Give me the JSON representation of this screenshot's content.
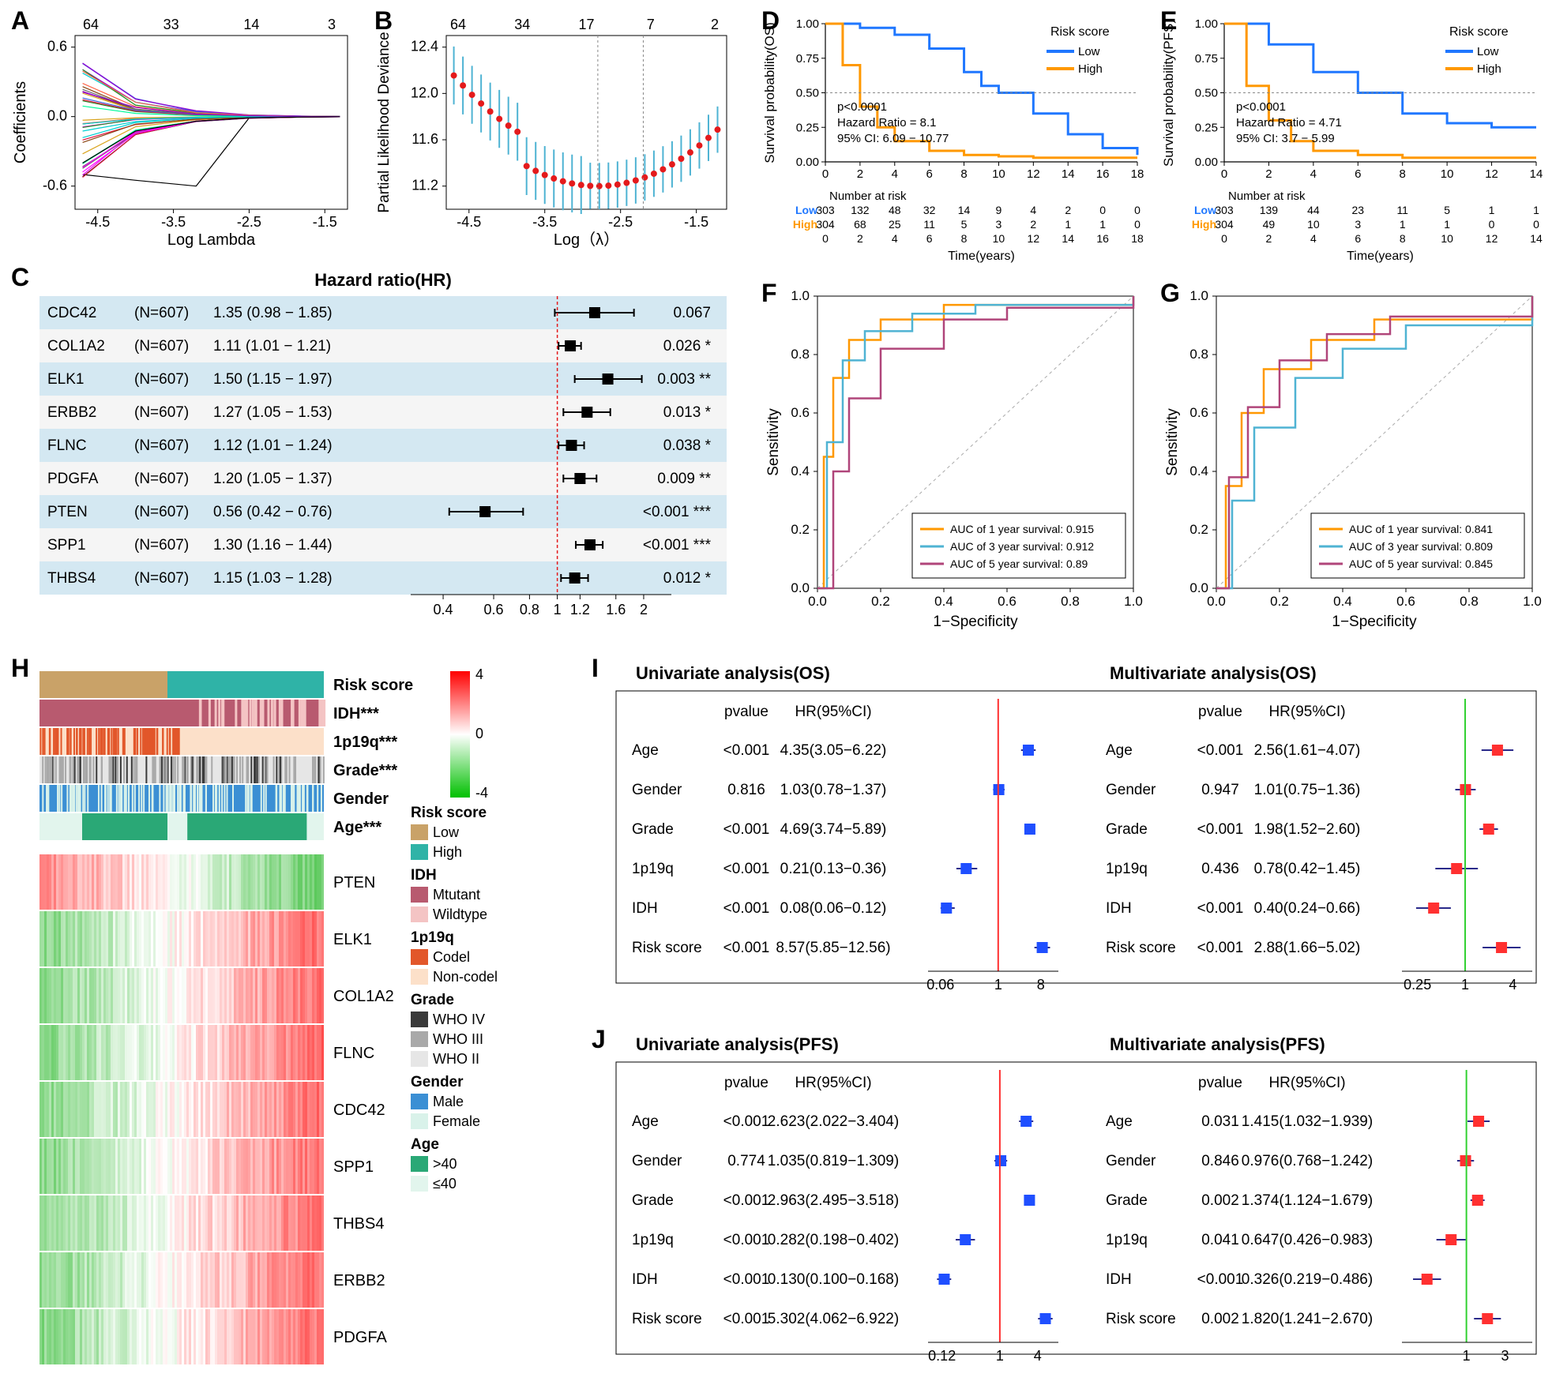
{
  "panelA": {
    "label": "A",
    "xlabel": "Log Lambda",
    "ylabel": "Coefficients",
    "top_ticks": [
      "64",
      "33",
      "14",
      "3"
    ],
    "x_ticks": [
      "-4.5",
      "-3.5",
      "-2.5",
      "-1.5"
    ],
    "y_ticks": [
      "-0.6",
      "0.0",
      "0.6"
    ],
    "xlim": [
      -4.8,
      -1.2
    ],
    "ylim": [
      -0.8,
      0.7
    ],
    "line_colors": [
      "#00CED1",
      "#FF00FF",
      "#9400D3",
      "#000000",
      "#8B4513",
      "#228B22",
      "#FF6347",
      "#4169E1",
      "#DAA520",
      "#696969",
      "#00FA9A",
      "#DC143C"
    ]
  },
  "panelB": {
    "label": "B",
    "xlabel": "Log（λ）",
    "ylabel": "Partial Likelihood Deviance",
    "top_ticks": [
      "64",
      "34",
      "17",
      "7",
      "2"
    ],
    "x_ticks": [
      "-4.5",
      "-3.5",
      "-2.5",
      "-1.5"
    ],
    "y_ticks": [
      "11.2",
      "11.6",
      "12.0",
      "12.4"
    ],
    "xlim": [
      -4.8,
      -1.1
    ],
    "ylim": [
      11.0,
      12.5
    ],
    "point_color": "#e41a1c",
    "error_color": "#4eb3d3",
    "vline_color": "#888888"
  },
  "panelC": {
    "label": "C",
    "title": "Hazard ratio(HR)",
    "header_bg": "#ffffff",
    "row_alt_bg": "#d4e8f2",
    "row_bg": "#f5f5f5",
    "ref_line_color": "#e41a1c",
    "marker_color": "#000000",
    "x_ticks": [
      "0.4",
      "0.6",
      "0.8",
      "1",
      "1.2",
      "1.6",
      "2"
    ],
    "rows": [
      {
        "gene": "CDC42",
        "n": "(N=607)",
        "hr": "1.35 (0.98 − 1.85)",
        "mid": 1.35,
        "lo": 0.98,
        "hi": 1.85,
        "p": "0.067",
        "sig": ""
      },
      {
        "gene": "COL1A2",
        "n": "(N=607)",
        "hr": "1.11 (1.01 − 1.21)",
        "mid": 1.11,
        "lo": 1.01,
        "hi": 1.21,
        "p": "0.026",
        "sig": "*"
      },
      {
        "gene": "ELK1",
        "n": "(N=607)",
        "hr": "1.50 (1.15 − 1.97)",
        "mid": 1.5,
        "lo": 1.15,
        "hi": 1.97,
        "p": "0.003",
        "sig": "**"
      },
      {
        "gene": "ERBB2",
        "n": "(N=607)",
        "hr": "1.27 (1.05 − 1.53)",
        "mid": 1.27,
        "lo": 1.05,
        "hi": 1.53,
        "p": "0.013",
        "sig": "*"
      },
      {
        "gene": "FLNC",
        "n": "(N=607)",
        "hr": "1.12 (1.01 − 1.24)",
        "mid": 1.12,
        "lo": 1.01,
        "hi": 1.24,
        "p": "0.038",
        "sig": "*"
      },
      {
        "gene": "PDGFA",
        "n": "(N=607)",
        "hr": "1.20 (1.05 − 1.37)",
        "mid": 1.2,
        "lo": 1.05,
        "hi": 1.37,
        "p": "0.009",
        "sig": "**"
      },
      {
        "gene": "PTEN",
        "n": "(N=607)",
        "hr": "0.56 (0.42 − 0.76)",
        "mid": 0.56,
        "lo": 0.42,
        "hi": 0.76,
        "p": "<0.001",
        "sig": "***"
      },
      {
        "gene": "SPP1",
        "n": "(N=607)",
        "hr": "1.30 (1.16 − 1.44)",
        "mid": 1.3,
        "lo": 1.16,
        "hi": 1.44,
        "p": "<0.001",
        "sig": "***"
      },
      {
        "gene": "THBS4",
        "n": "(N=607)",
        "hr": "1.15 (1.03 − 1.28)",
        "mid": 1.15,
        "lo": 1.03,
        "hi": 1.28,
        "p": "0.012",
        "sig": "*"
      }
    ]
  },
  "panelD": {
    "label": "D",
    "ylabel": "Survival probability(OS)",
    "xlabel": "Time(years)",
    "legend_title": "Risk score",
    "legend": [
      {
        "label": "Low",
        "color": "#1f77ff"
      },
      {
        "label": "High",
        "color": "#ff9800"
      }
    ],
    "stats": [
      "p<0.0001",
      "Hazard Ratio = 8.1",
      "95% CI: 6.09 − 10.77"
    ],
    "risk_title": "Number at risk",
    "x_ticks": [
      0,
      2,
      4,
      6,
      8,
      10,
      12,
      14,
      16,
      18
    ],
    "y_ticks": [
      "0.00",
      "0.25",
      "0.50",
      "0.75",
      "1.00"
    ],
    "risk_low": [
      "303",
      "132",
      "48",
      "32",
      "14",
      "9",
      "4",
      "2",
      "0",
      "0"
    ],
    "risk_high": [
      "304",
      "68",
      "25",
      "11",
      "5",
      "3",
      "2",
      "1",
      "1",
      "0"
    ],
    "low_curve": [
      [
        0,
        1.0
      ],
      [
        2,
        0.97
      ],
      [
        4,
        0.92
      ],
      [
        6,
        0.82
      ],
      [
        8,
        0.65
      ],
      [
        9,
        0.55
      ],
      [
        10,
        0.5
      ],
      [
        12,
        0.35
      ],
      [
        14,
        0.2
      ],
      [
        16,
        0.1
      ],
      [
        18,
        0.05
      ]
    ],
    "high_curve": [
      [
        0,
        1.0
      ],
      [
        1,
        0.7
      ],
      [
        2,
        0.4
      ],
      [
        3,
        0.25
      ],
      [
        4,
        0.15
      ],
      [
        6,
        0.08
      ],
      [
        8,
        0.05
      ],
      [
        10,
        0.04
      ],
      [
        12,
        0.03
      ],
      [
        18,
        0.03
      ]
    ]
  },
  "panelE": {
    "label": "E",
    "ylabel": "Survival probability(PFS)",
    "xlabel": "Time(years)",
    "legend_title": "Risk score",
    "legend": [
      {
        "label": "Low",
        "color": "#1f77ff"
      },
      {
        "label": "High",
        "color": "#ff9800"
      }
    ],
    "stats": [
      "p<0.0001",
      "Hazard Ratio = 4.71",
      "95% CI: 3.7 − 5.99"
    ],
    "risk_title": "Number at risk",
    "x_ticks": [
      0,
      2,
      4,
      6,
      8,
      10,
      12,
      14
    ],
    "y_ticks": [
      "0.00",
      "0.25",
      "0.50",
      "0.75",
      "1.00"
    ],
    "risk_low": [
      "303",
      "139",
      "44",
      "23",
      "11",
      "5",
      "1",
      "1"
    ],
    "risk_high": [
      "304",
      "49",
      "10",
      "3",
      "1",
      "1",
      "0",
      "0"
    ],
    "low_curve": [
      [
        0,
        1.0
      ],
      [
        2,
        0.85
      ],
      [
        4,
        0.65
      ],
      [
        6,
        0.5
      ],
      [
        8,
        0.35
      ],
      [
        10,
        0.28
      ],
      [
        12,
        0.25
      ],
      [
        14,
        0.25
      ]
    ],
    "high_curve": [
      [
        0,
        1.0
      ],
      [
        1,
        0.55
      ],
      [
        2,
        0.3
      ],
      [
        3,
        0.15
      ],
      [
        4,
        0.08
      ],
      [
        6,
        0.05
      ],
      [
        8,
        0.03
      ],
      [
        14,
        0.03
      ]
    ]
  },
  "panelF": {
    "label": "F",
    "xlabel": "1−Specificity",
    "ylabel": "Sensitivity",
    "x_ticks": [
      "0.0",
      "0.2",
      "0.4",
      "0.6",
      "0.8",
      "1.0"
    ],
    "y_ticks": [
      "0.0",
      "0.2",
      "0.4",
      "0.6",
      "0.8",
      "1.0"
    ],
    "legend": [
      {
        "label": "AUC of 1 year survival:  0.915",
        "color": "#ff9800"
      },
      {
        "label": "AUC of 3 year survival:  0.912",
        "color": "#4fb3d3"
      },
      {
        "label": "AUC of 5 year survival:  0.89",
        "color": "#b0457a"
      }
    ],
    "curves": {
      "y1": [
        [
          0,
          0
        ],
        [
          0.02,
          0.45
        ],
        [
          0.05,
          0.72
        ],
        [
          0.1,
          0.85
        ],
        [
          0.2,
          0.92
        ],
        [
          0.4,
          0.97
        ],
        [
          1,
          1
        ]
      ],
      "y3": [
        [
          0,
          0
        ],
        [
          0.03,
          0.5
        ],
        [
          0.08,
          0.78
        ],
        [
          0.15,
          0.88
        ],
        [
          0.3,
          0.94
        ],
        [
          0.5,
          0.97
        ],
        [
          1,
          1
        ]
      ],
      "y5": [
        [
          0,
          0
        ],
        [
          0.05,
          0.4
        ],
        [
          0.1,
          0.65
        ],
        [
          0.2,
          0.82
        ],
        [
          0.4,
          0.92
        ],
        [
          0.6,
          0.96
        ],
        [
          1,
          1
        ]
      ]
    }
  },
  "panelG": {
    "label": "G",
    "xlabel": "1−Specificity",
    "ylabel": "Sensitivity",
    "x_ticks": [
      "0.0",
      "0.2",
      "0.4",
      "0.6",
      "0.8",
      "1.0"
    ],
    "y_ticks": [
      "0.0",
      "0.2",
      "0.4",
      "0.6",
      "0.8",
      "1.0"
    ],
    "legend": [
      {
        "label": "AUC of 1 year survival:  0.841",
        "color": "#ff9800"
      },
      {
        "label": "AUC of 3 year survival:  0.809",
        "color": "#4fb3d3"
      },
      {
        "label": "AUC of 5 year survival:  0.845",
        "color": "#b0457a"
      }
    ],
    "curves": {
      "y1": [
        [
          0,
          0
        ],
        [
          0.03,
          0.35
        ],
        [
          0.08,
          0.6
        ],
        [
          0.15,
          0.75
        ],
        [
          0.3,
          0.85
        ],
        [
          0.5,
          0.92
        ],
        [
          1,
          1
        ]
      ],
      "y3": [
        [
          0,
          0
        ],
        [
          0.05,
          0.3
        ],
        [
          0.12,
          0.55
        ],
        [
          0.25,
          0.72
        ],
        [
          0.4,
          0.82
        ],
        [
          0.6,
          0.9
        ],
        [
          1,
          1
        ]
      ],
      "y5": [
        [
          0,
          0
        ],
        [
          0.04,
          0.38
        ],
        [
          0.1,
          0.62
        ],
        [
          0.2,
          0.78
        ],
        [
          0.35,
          0.87
        ],
        [
          0.55,
          0.93
        ],
        [
          1,
          1
        ]
      ]
    }
  },
  "panelH": {
    "label": "H",
    "tracks": [
      "Risk score",
      "IDH***",
      "1p19q***",
      "Grade***",
      "Gender",
      "Age***"
    ],
    "genes": [
      "PTEN",
      "ELK1",
      "COL1A2",
      "FLNC",
      "CDC42",
      "SPP1",
      "THBS4",
      "ERBB2",
      "PDGFA"
    ],
    "colorbar": {
      "max": "4",
      "mid": "0",
      "min": "-4",
      "top": "#ff0000",
      "center": "#ffffff",
      "bottom": "#00c000"
    },
    "legends": [
      {
        "title": "Risk score",
        "items": [
          {
            "label": "Low",
            "color": "#c9a268"
          },
          {
            "label": "High",
            "color": "#2fb3a7"
          }
        ]
      },
      {
        "title": "IDH",
        "items": [
          {
            "label": "Mtutant",
            "color": "#b85a6f"
          },
          {
            "label": "Wildtype",
            "color": "#f4c4c4"
          }
        ]
      },
      {
        "title": "1p19q",
        "items": [
          {
            "label": "Codel",
            "color": "#e2572a"
          },
          {
            "label": "Non-codel",
            "color": "#fce0c9"
          }
        ]
      },
      {
        "title": "Grade",
        "items": [
          {
            "label": "WHO IV",
            "color": "#3a3a3a"
          },
          {
            "label": "WHO III",
            "color": "#a9a9a9"
          },
          {
            "label": "WHO II",
            "color": "#e6e6e6"
          }
        ]
      },
      {
        "title": "Gender",
        "items": [
          {
            "label": "Male",
            "color": "#3b8fd4"
          },
          {
            "label": "Female",
            "color": "#d9f2ea"
          }
        ]
      },
      {
        "title": "Age",
        "items": [
          {
            "label": ">40",
            "color": "#2aa876"
          },
          {
            "label": "≤40",
            "color": "#e2f5ed"
          }
        ]
      }
    ]
  },
  "panelI": {
    "label": "I",
    "left_title": "Univariate analysis(OS)",
    "right_title": "Multivariate analysis(OS)",
    "cols": [
      "pvalue",
      "HR(95%CI)"
    ],
    "ref_color_l": "#ff3030",
    "ref_color_r": "#30d030",
    "marker_l": "#1f4fff",
    "marker_r": "#ff3030",
    "left_ticks": [
      "0.06",
      "1",
      "8"
    ],
    "right_ticks": [
      "0.25",
      "1",
      "4"
    ],
    "left": [
      {
        "var": "Age",
        "p": "<0.001",
        "hr": "4.35(3.05−6.22)",
        "mid": 4.35,
        "lo": 3.05,
        "hi": 6.22
      },
      {
        "var": "Gender",
        "p": "0.816",
        "hr": "1.03(0.78−1.37)",
        "mid": 1.03,
        "lo": 0.78,
        "hi": 1.37
      },
      {
        "var": "Grade",
        "p": "<0.001",
        "hr": "4.69(3.74−5.89)",
        "mid": 4.69,
        "lo": 3.74,
        "hi": 5.89
      },
      {
        "var": "1p19q",
        "p": "<0.001",
        "hr": "0.21(0.13−0.36)",
        "mid": 0.21,
        "lo": 0.13,
        "hi": 0.36
      },
      {
        "var": "IDH",
        "p": "<0.001",
        "hr": "0.08(0.06−0.12)",
        "mid": 0.08,
        "lo": 0.06,
        "hi": 0.12
      },
      {
        "var": "Risk score",
        "p": "<0.001",
        "hr": "8.57(5.85−12.56)",
        "mid": 8.57,
        "lo": 5.85,
        "hi": 12.56
      }
    ],
    "right": [
      {
        "var": "Age",
        "p": "<0.001",
        "hr": "2.56(1.61−4.07)",
        "mid": 2.56,
        "lo": 1.61,
        "hi": 4.07
      },
      {
        "var": "Gender",
        "p": "0.947",
        "hr": "1.01(0.75−1.36)",
        "mid": 1.01,
        "lo": 0.75,
        "hi": 1.36
      },
      {
        "var": "Grade",
        "p": "<0.001",
        "hr": "1.98(1.52−2.60)",
        "mid": 1.98,
        "lo": 1.52,
        "hi": 2.6
      },
      {
        "var": "1p19q",
        "p": "0.436",
        "hr": "0.78(0.42−1.45)",
        "mid": 0.78,
        "lo": 0.42,
        "hi": 1.45
      },
      {
        "var": "IDH",
        "p": "<0.001",
        "hr": "0.40(0.24−0.66)",
        "mid": 0.4,
        "lo": 0.24,
        "hi": 0.66
      },
      {
        "var": "Risk score",
        "p": "<0.001",
        "hr": "2.88(1.66−5.02)",
        "mid": 2.88,
        "lo": 1.66,
        "hi": 5.02
      }
    ]
  },
  "panelJ": {
    "label": "J",
    "left_title": "Univariate analysis(PFS)",
    "right_title": "Multivariate analysis(PFS)",
    "cols": [
      "pvalue",
      "HR(95%CI)"
    ],
    "ref_color_l": "#ff3030",
    "ref_color_r": "#30d030",
    "marker_l": "#1f4fff",
    "marker_r": "#ff3030",
    "left_ticks": [
      "0.12",
      "1",
      "4"
    ],
    "right_ticks": [
      "1",
      "3"
    ],
    "left": [
      {
        "var": "Age",
        "p": "<0.001",
        "hr": "2.623(2.022−3.404)",
        "mid": 2.623,
        "lo": 2.022,
        "hi": 3.404
      },
      {
        "var": "Gender",
        "p": "0.774",
        "hr": "1.035(0.819−1.309)",
        "mid": 1.035,
        "lo": 0.819,
        "hi": 1.309
      },
      {
        "var": "Grade",
        "p": "<0.001",
        "hr": "2.963(2.495−3.518)",
        "mid": 2.963,
        "lo": 2.495,
        "hi": 3.518
      },
      {
        "var": "1p19q",
        "p": "<0.001",
        "hr": "0.282(0.198−0.402)",
        "mid": 0.282,
        "lo": 0.198,
        "hi": 0.402
      },
      {
        "var": "IDH",
        "p": "<0.001",
        "hr": "0.130(0.100−0.168)",
        "mid": 0.13,
        "lo": 0.1,
        "hi": 0.168
      },
      {
        "var": "Risk score",
        "p": "<0.001",
        "hr": "5.302(4.062−6.922)",
        "mid": 5.302,
        "lo": 4.062,
        "hi": 6.922
      }
    ],
    "right": [
      {
        "var": "Age",
        "p": "0.031",
        "hr": "1.415(1.032−1.939)",
        "mid": 1.415,
        "lo": 1.032,
        "hi": 1.939
      },
      {
        "var": "Gender",
        "p": "0.846",
        "hr": "0.976(0.768−1.242)",
        "mid": 0.976,
        "lo": 0.768,
        "hi": 1.242
      },
      {
        "var": "Grade",
        "p": "0.002",
        "hr": "1.374(1.124−1.679)",
        "mid": 1.374,
        "lo": 1.124,
        "hi": 1.679
      },
      {
        "var": "1p19q",
        "p": "0.041",
        "hr": "0.647(0.426−0.983)",
        "mid": 0.647,
        "lo": 0.426,
        "hi": 0.983
      },
      {
        "var": "IDH",
        "p": "<0.001",
        "hr": "0.326(0.219−0.486)",
        "mid": 0.326,
        "lo": 0.219,
        "hi": 0.486
      },
      {
        "var": "Risk score",
        "p": "0.002",
        "hr": "1.820(1.241−2.670)",
        "mid": 1.82,
        "lo": 1.241,
        "hi": 2.67
      }
    ]
  }
}
